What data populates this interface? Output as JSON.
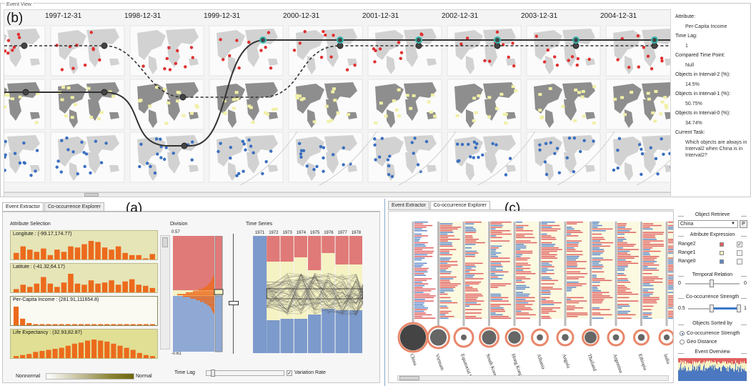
{
  "event_view": {
    "title": "Event View",
    "panel_letter": "(b)",
    "dates": [
      "1997-12-31",
      "1998-12-31",
      "1999-12-31",
      "2000-12-31",
      "2001-12-31",
      "2002-12-31",
      "2003-12-31",
      "2004-12-31"
    ],
    "info": {
      "attribute_label": "Attribute:",
      "attribute_value": "Per-Capita Income",
      "time_lag_label": "Time Lag:",
      "time_lag_value": "1",
      "compared_label": "Compared Time Point:",
      "compared_value": "Null",
      "interval2_label": "Objects in Interval-2 (%):",
      "interval2_value": "14.5%",
      "interval1_label": "Objects in Interval-1 (%):",
      "interval1_value": "50.75%",
      "interval0_label": "Objects in Interval-0 (%):",
      "interval0_value": "34.74%",
      "task_label": "Current Task:",
      "task_value": "Which objects are always in Interval2 when China is in Interval2?"
    },
    "colors": {
      "interval2": "#e03030",
      "interval1": "#ecec96",
      "interval0": "#3a6fc0",
      "teal": "#36b8b0"
    }
  },
  "panel_a": {
    "panel_letter": "(a)",
    "tabs": [
      "Event Extractor",
      "Co-occurrence Explorer"
    ],
    "active_tab": "Event Extractor",
    "attribute_selection_title": "Attribute Selection",
    "attributes": [
      {
        "label": "Longitute : (-99.17,174.77)",
        "hist": [
          6,
          12,
          9,
          7,
          10,
          4,
          9,
          7,
          12,
          11,
          14,
          17,
          16,
          11,
          9,
          12,
          6,
          4,
          4,
          1,
          5
        ]
      },
      {
        "label": "Latitute : (-41.32,64.17)",
        "hist": [
          3,
          7,
          5,
          8,
          14,
          8,
          5,
          9,
          17,
          8,
          7,
          11,
          8,
          9,
          11,
          7,
          10,
          12,
          7,
          6,
          4
        ]
      },
      {
        "label": "Per-Capita Income : (281.91,111654.8)",
        "hist": [
          17,
          6,
          2,
          1,
          1,
          1,
          1,
          1,
          1,
          1,
          1,
          1,
          1,
          1,
          1,
          1,
          1,
          1,
          1,
          1,
          1,
          1
        ]
      },
      {
        "label": "Life Expectancy : (32.93,82.87)",
        "hist": [
          2,
          3,
          4,
          6,
          7,
          8,
          9,
          10,
          12,
          14,
          15,
          17,
          18,
          17,
          16,
          14,
          12,
          10,
          8,
          5,
          3,
          2
        ]
      }
    ],
    "legend_left": "Nonnormal",
    "legend_right": "Normal",
    "division_title": "Division",
    "division_top": "0.57",
    "division_bottom": "-0.61",
    "time_series_title": "Time Series",
    "years": [
      "1971",
      "1972",
      "1973",
      "1974",
      "1975",
      "1976",
      "1977",
      "1978"
    ],
    "time_lag_label": "Time Lag",
    "variation_rate_label": "Variation Rate",
    "variation_rate_checked": true
  },
  "panel_c": {
    "panel_letter": "(c)",
    "tabs": [
      "Event Extractor",
      "Co-occurrence Explorer"
    ],
    "active_tab": "Co-occurrence Explorer",
    "countries": [
      "China",
      "Vietnam",
      "Equatorial G",
      "South Korea",
      "Hong Kong",
      "Albania",
      "Angola",
      "Thailand",
      "Argentina",
      "Ethiopia",
      "India"
    ],
    "object_retrieve_title": "Object Retrieve",
    "object_value": "China",
    "p_button": "P",
    "attribute_expression_title": "Attribute Expression",
    "ranges": [
      {
        "label": "Range2",
        "color": "#e06060",
        "checked": true
      },
      {
        "label": "Range1",
        "color": "#f5f2c4",
        "checked": false
      },
      {
        "label": "Range0",
        "color": "#5b87c8",
        "checked": false
      }
    ],
    "temporal_title": "Temporal Relation",
    "temporal_min": "0",
    "temporal_max": "0",
    "strength_title": "Co-occurrence Strength",
    "strength_min": "0.5",
    "strength_max": "1",
    "sorted_title": "Objects Sorted by",
    "sort_options": [
      "Co-occurrence Strength",
      "Geo Distance"
    ],
    "event_overview_title": "Event Overview"
  }
}
